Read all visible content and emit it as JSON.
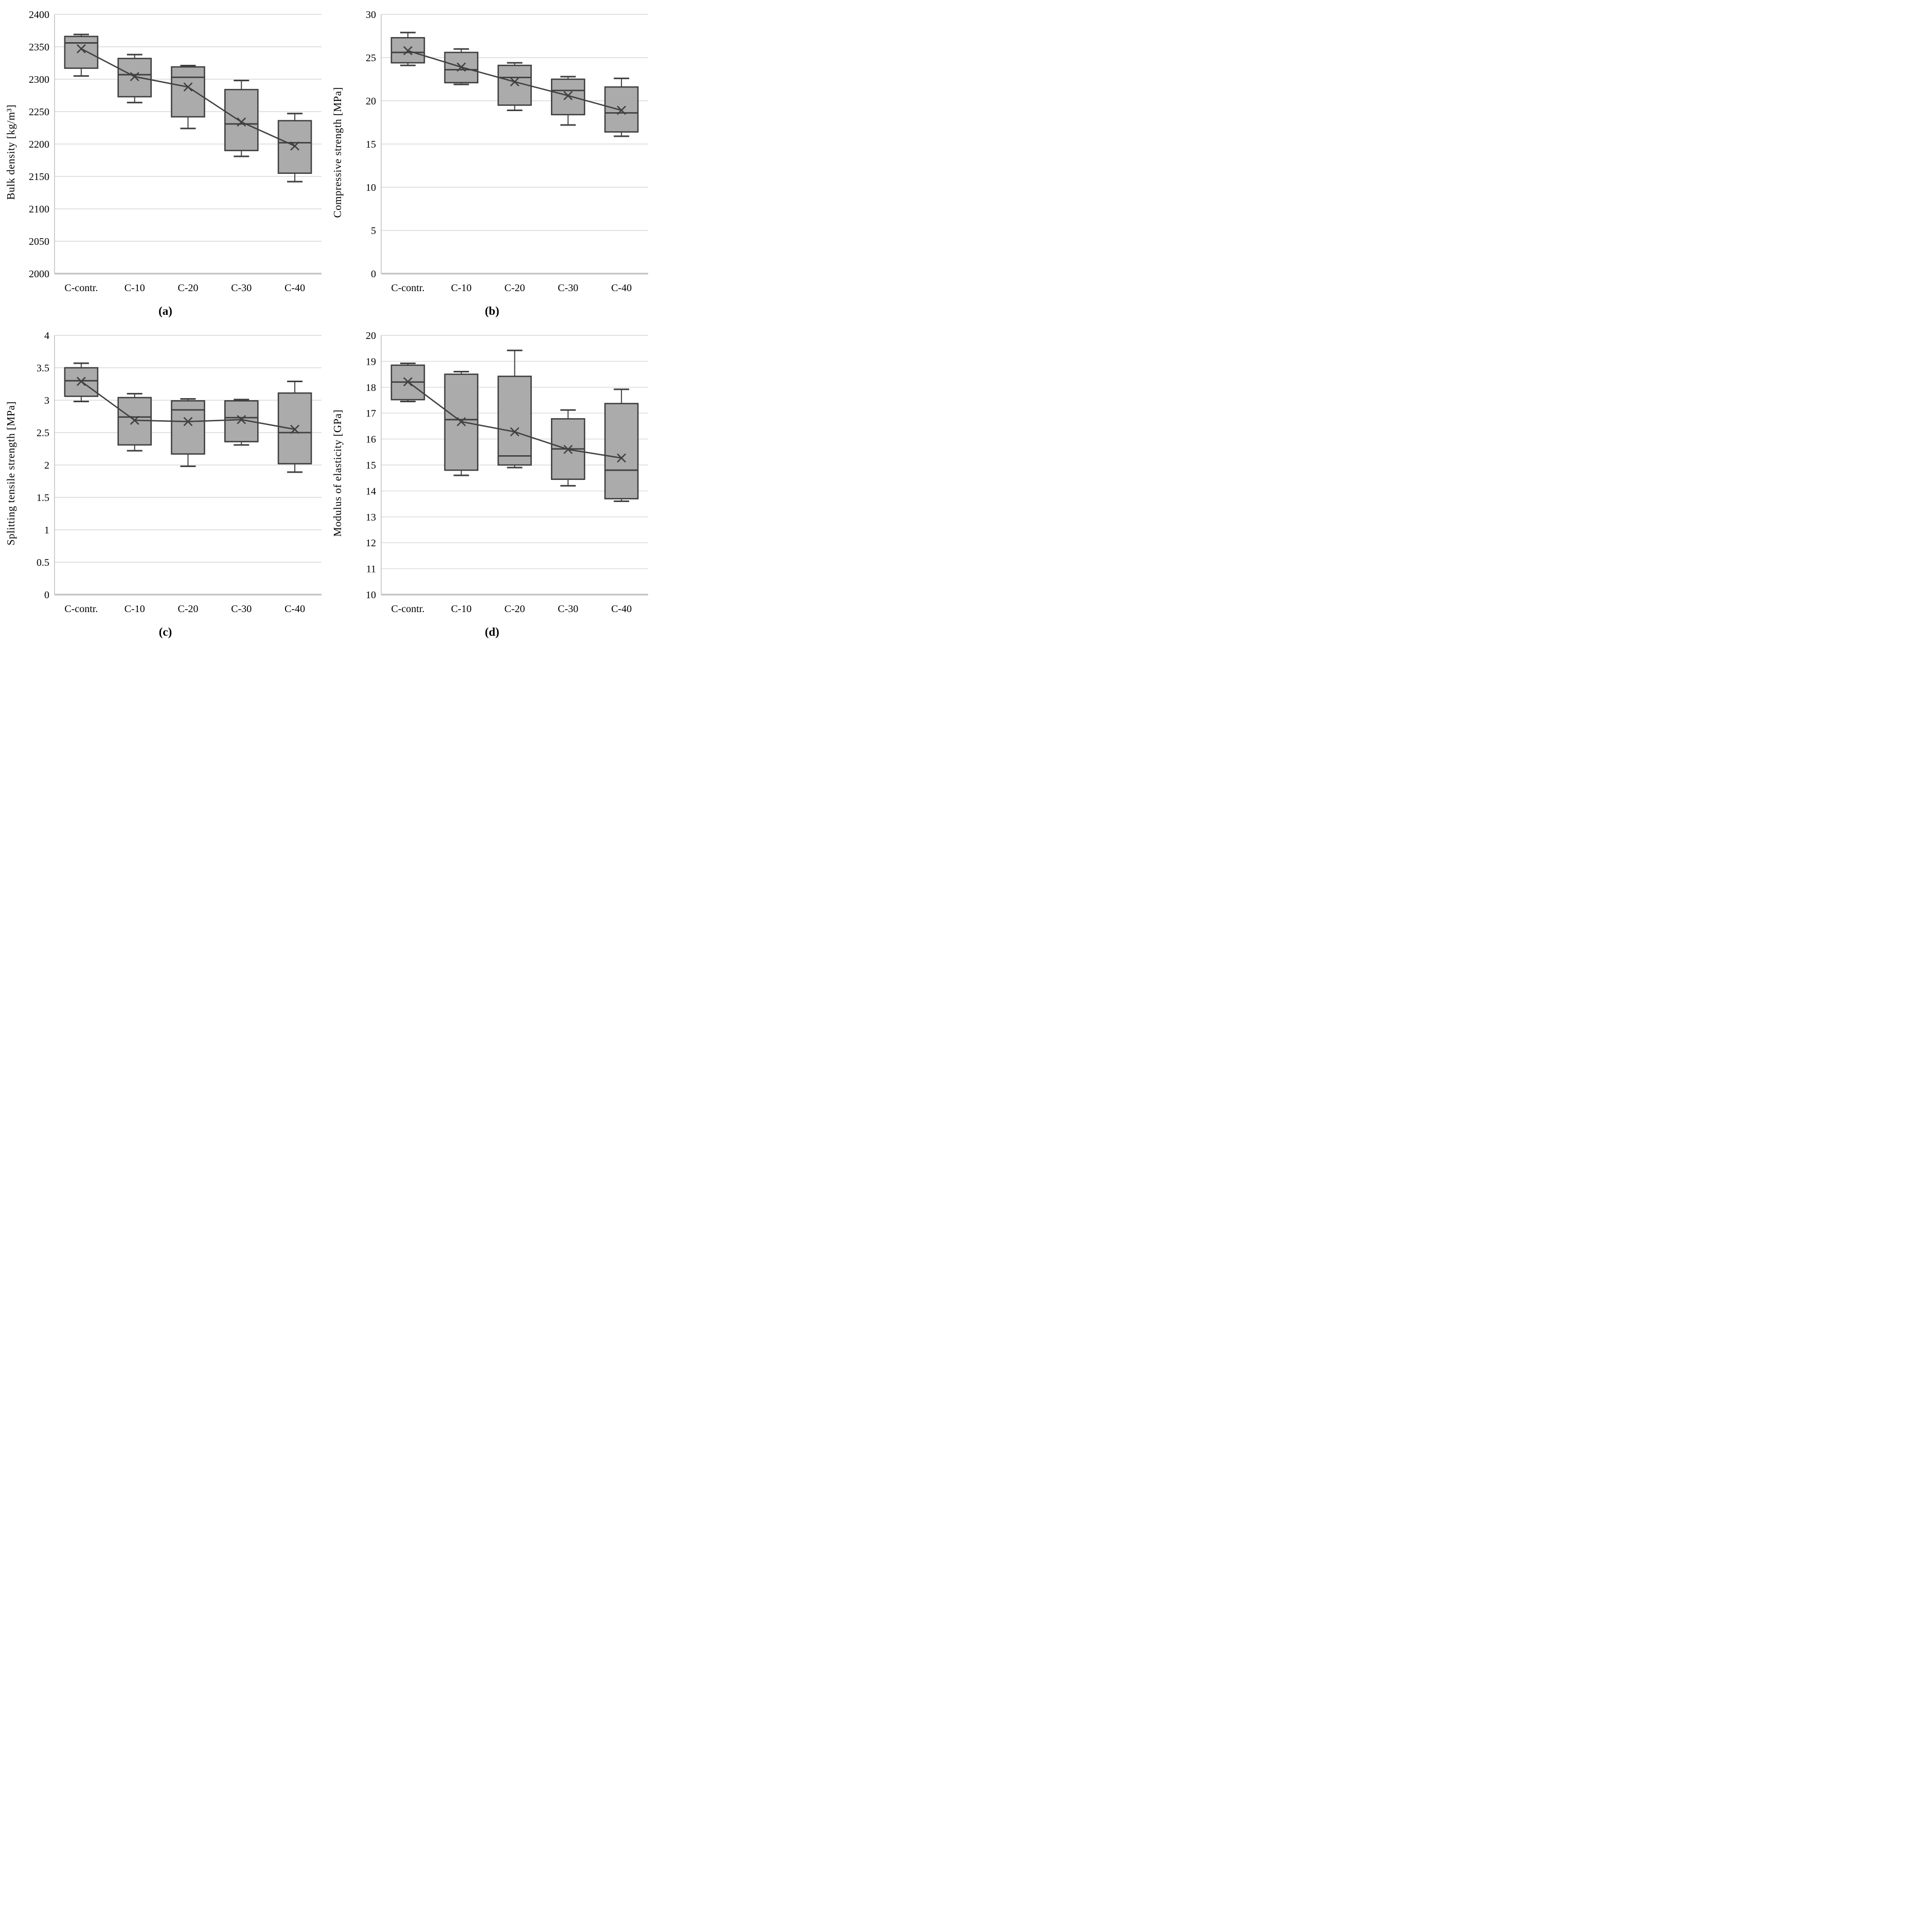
{
  "figure": {
    "background": "#ffffff",
    "box_fill": "#ababab",
    "box_stroke": "#3f3f3f",
    "median_color": "#3f3f3f",
    "whisker_color": "#3f3f3f",
    "mean_line_color": "#404040",
    "grid_color": "#d9d9d9",
    "axis_color": "#c3c3c3",
    "text_color": "#000000"
  },
  "categories": [
    "C-contr.",
    "C-10",
    "C-20",
    "C-30",
    "C-40"
  ],
  "chart_data": [
    {
      "type": "box",
      "caption": "(a)",
      "ylabel": "Bulk density [kg/m³]",
      "xlabel": "",
      "ylim": [
        2000,
        2400
      ],
      "ystep": 50,
      "grid": true,
      "legend": "none",
      "categories": [
        "C-contr.",
        "C-10",
        "C-20",
        "C-30",
        "C-40"
      ],
      "series": [
        {
          "category": "C-contr.",
          "whisker_low": 2305,
          "q1": 2317,
          "median": 2356,
          "q3": 2366,
          "whisker_high": 2369,
          "mean": 2347
        },
        {
          "category": "C-10",
          "whisker_low": 2264,
          "q1": 2273,
          "median": 2307,
          "q3": 2332,
          "whisker_high": 2338,
          "mean": 2304
        },
        {
          "category": "C-20",
          "whisker_low": 2224,
          "q1": 2242,
          "median": 2303,
          "q3": 2319,
          "whisker_high": 2321,
          "mean": 2288
        },
        {
          "category": "C-30",
          "whisker_low": 2181,
          "q1": 2190,
          "median": 2231,
          "q3": 2284,
          "whisker_high": 2298,
          "mean": 2234
        },
        {
          "category": "C-40",
          "whisker_low": 2142,
          "q1": 2155,
          "median": 2202,
          "q3": 2236,
          "whisker_high": 2247,
          "mean": 2197
        }
      ]
    },
    {
      "type": "box",
      "caption": "(b)",
      "ylabel": "Compressive strength [MPa]",
      "xlabel": "",
      "ylim": [
        0,
        30
      ],
      "ystep": 5,
      "grid": true,
      "legend": "none",
      "categories": [
        "C-contr.",
        "C-10",
        "C-20",
        "C-30",
        "C-40"
      ],
      "series": [
        {
          "category": "C-contr.",
          "whisker_low": 24.1,
          "q1": 24.4,
          "median": 25.6,
          "q3": 27.3,
          "whisker_high": 27.9,
          "mean": 25.8
        },
        {
          "category": "C-10",
          "whisker_low": 21.9,
          "q1": 22.1,
          "median": 23.6,
          "q3": 25.6,
          "whisker_high": 26.0,
          "mean": 23.9
        },
        {
          "category": "C-20",
          "whisker_low": 18.9,
          "q1": 19.5,
          "median": 22.7,
          "q3": 24.1,
          "whisker_high": 24.4,
          "mean": 22.2
        },
        {
          "category": "C-30",
          "whisker_low": 17.2,
          "q1": 18.4,
          "median": 21.2,
          "q3": 22.5,
          "whisker_high": 22.8,
          "mean": 20.6
        },
        {
          "category": "C-40",
          "whisker_low": 15.9,
          "q1": 16.4,
          "median": 18.6,
          "q3": 21.6,
          "whisker_high": 22.6,
          "mean": 18.9
        }
      ]
    },
    {
      "type": "box",
      "caption": "(c)",
      "ylabel": "Splitting tensile strength [MPa]",
      "xlabel": "",
      "ylim": [
        0,
        4
      ],
      "ystep": 0.5,
      "grid": true,
      "legend": "none",
      "categories": [
        "C-contr.",
        "C-10",
        "C-20",
        "C-30",
        "C-40"
      ],
      "series": [
        {
          "category": "C-contr.",
          "whisker_low": 2.98,
          "q1": 3.06,
          "median": 3.3,
          "q3": 3.5,
          "whisker_high": 3.57,
          "mean": 3.29
        },
        {
          "category": "C-10",
          "whisker_low": 2.22,
          "q1": 2.31,
          "median": 2.74,
          "q3": 3.04,
          "whisker_high": 3.1,
          "mean": 2.69
        },
        {
          "category": "C-20",
          "whisker_low": 1.98,
          "q1": 2.17,
          "median": 2.85,
          "q3": 2.99,
          "whisker_high": 3.02,
          "mean": 2.67
        },
        {
          "category": "C-30",
          "whisker_low": 2.31,
          "q1": 2.36,
          "median": 2.73,
          "q3": 2.99,
          "whisker_high": 3.01,
          "mean": 2.7
        },
        {
          "category": "C-40",
          "whisker_low": 1.89,
          "q1": 2.02,
          "median": 2.5,
          "q3": 3.11,
          "whisker_high": 3.29,
          "mean": 2.55
        }
      ]
    },
    {
      "type": "box",
      "caption": "(d)",
      "ylabel": "Modulus of elasticity  [GPa]",
      "xlabel": "",
      "ylim": [
        10,
        20
      ],
      "ystep": 1,
      "grid": true,
      "legend": "none",
      "categories": [
        "C-contr.",
        "C-10",
        "C-20",
        "C-30",
        "C-40"
      ],
      "series": [
        {
          "category": "C-contr.",
          "whisker_low": 17.45,
          "q1": 17.52,
          "median": 18.2,
          "q3": 18.85,
          "whisker_high": 18.92,
          "mean": 18.21
        },
        {
          "category": "C-10",
          "whisker_low": 14.6,
          "q1": 14.8,
          "median": 16.75,
          "q3": 18.5,
          "whisker_high": 18.6,
          "mean": 16.67
        },
        {
          "category": "C-20",
          "whisker_low": 14.9,
          "q1": 15.0,
          "median": 15.35,
          "q3": 18.42,
          "whisker_high": 19.42,
          "mean": 16.28
        },
        {
          "category": "C-30",
          "whisker_low": 14.2,
          "q1": 14.45,
          "median": 15.62,
          "q3": 16.78,
          "whisker_high": 17.12,
          "mean": 15.6
        },
        {
          "category": "C-40",
          "whisker_low": 13.6,
          "q1": 13.7,
          "median": 14.8,
          "q3": 17.37,
          "whisker_high": 17.92,
          "mean": 15.27
        }
      ]
    }
  ]
}
